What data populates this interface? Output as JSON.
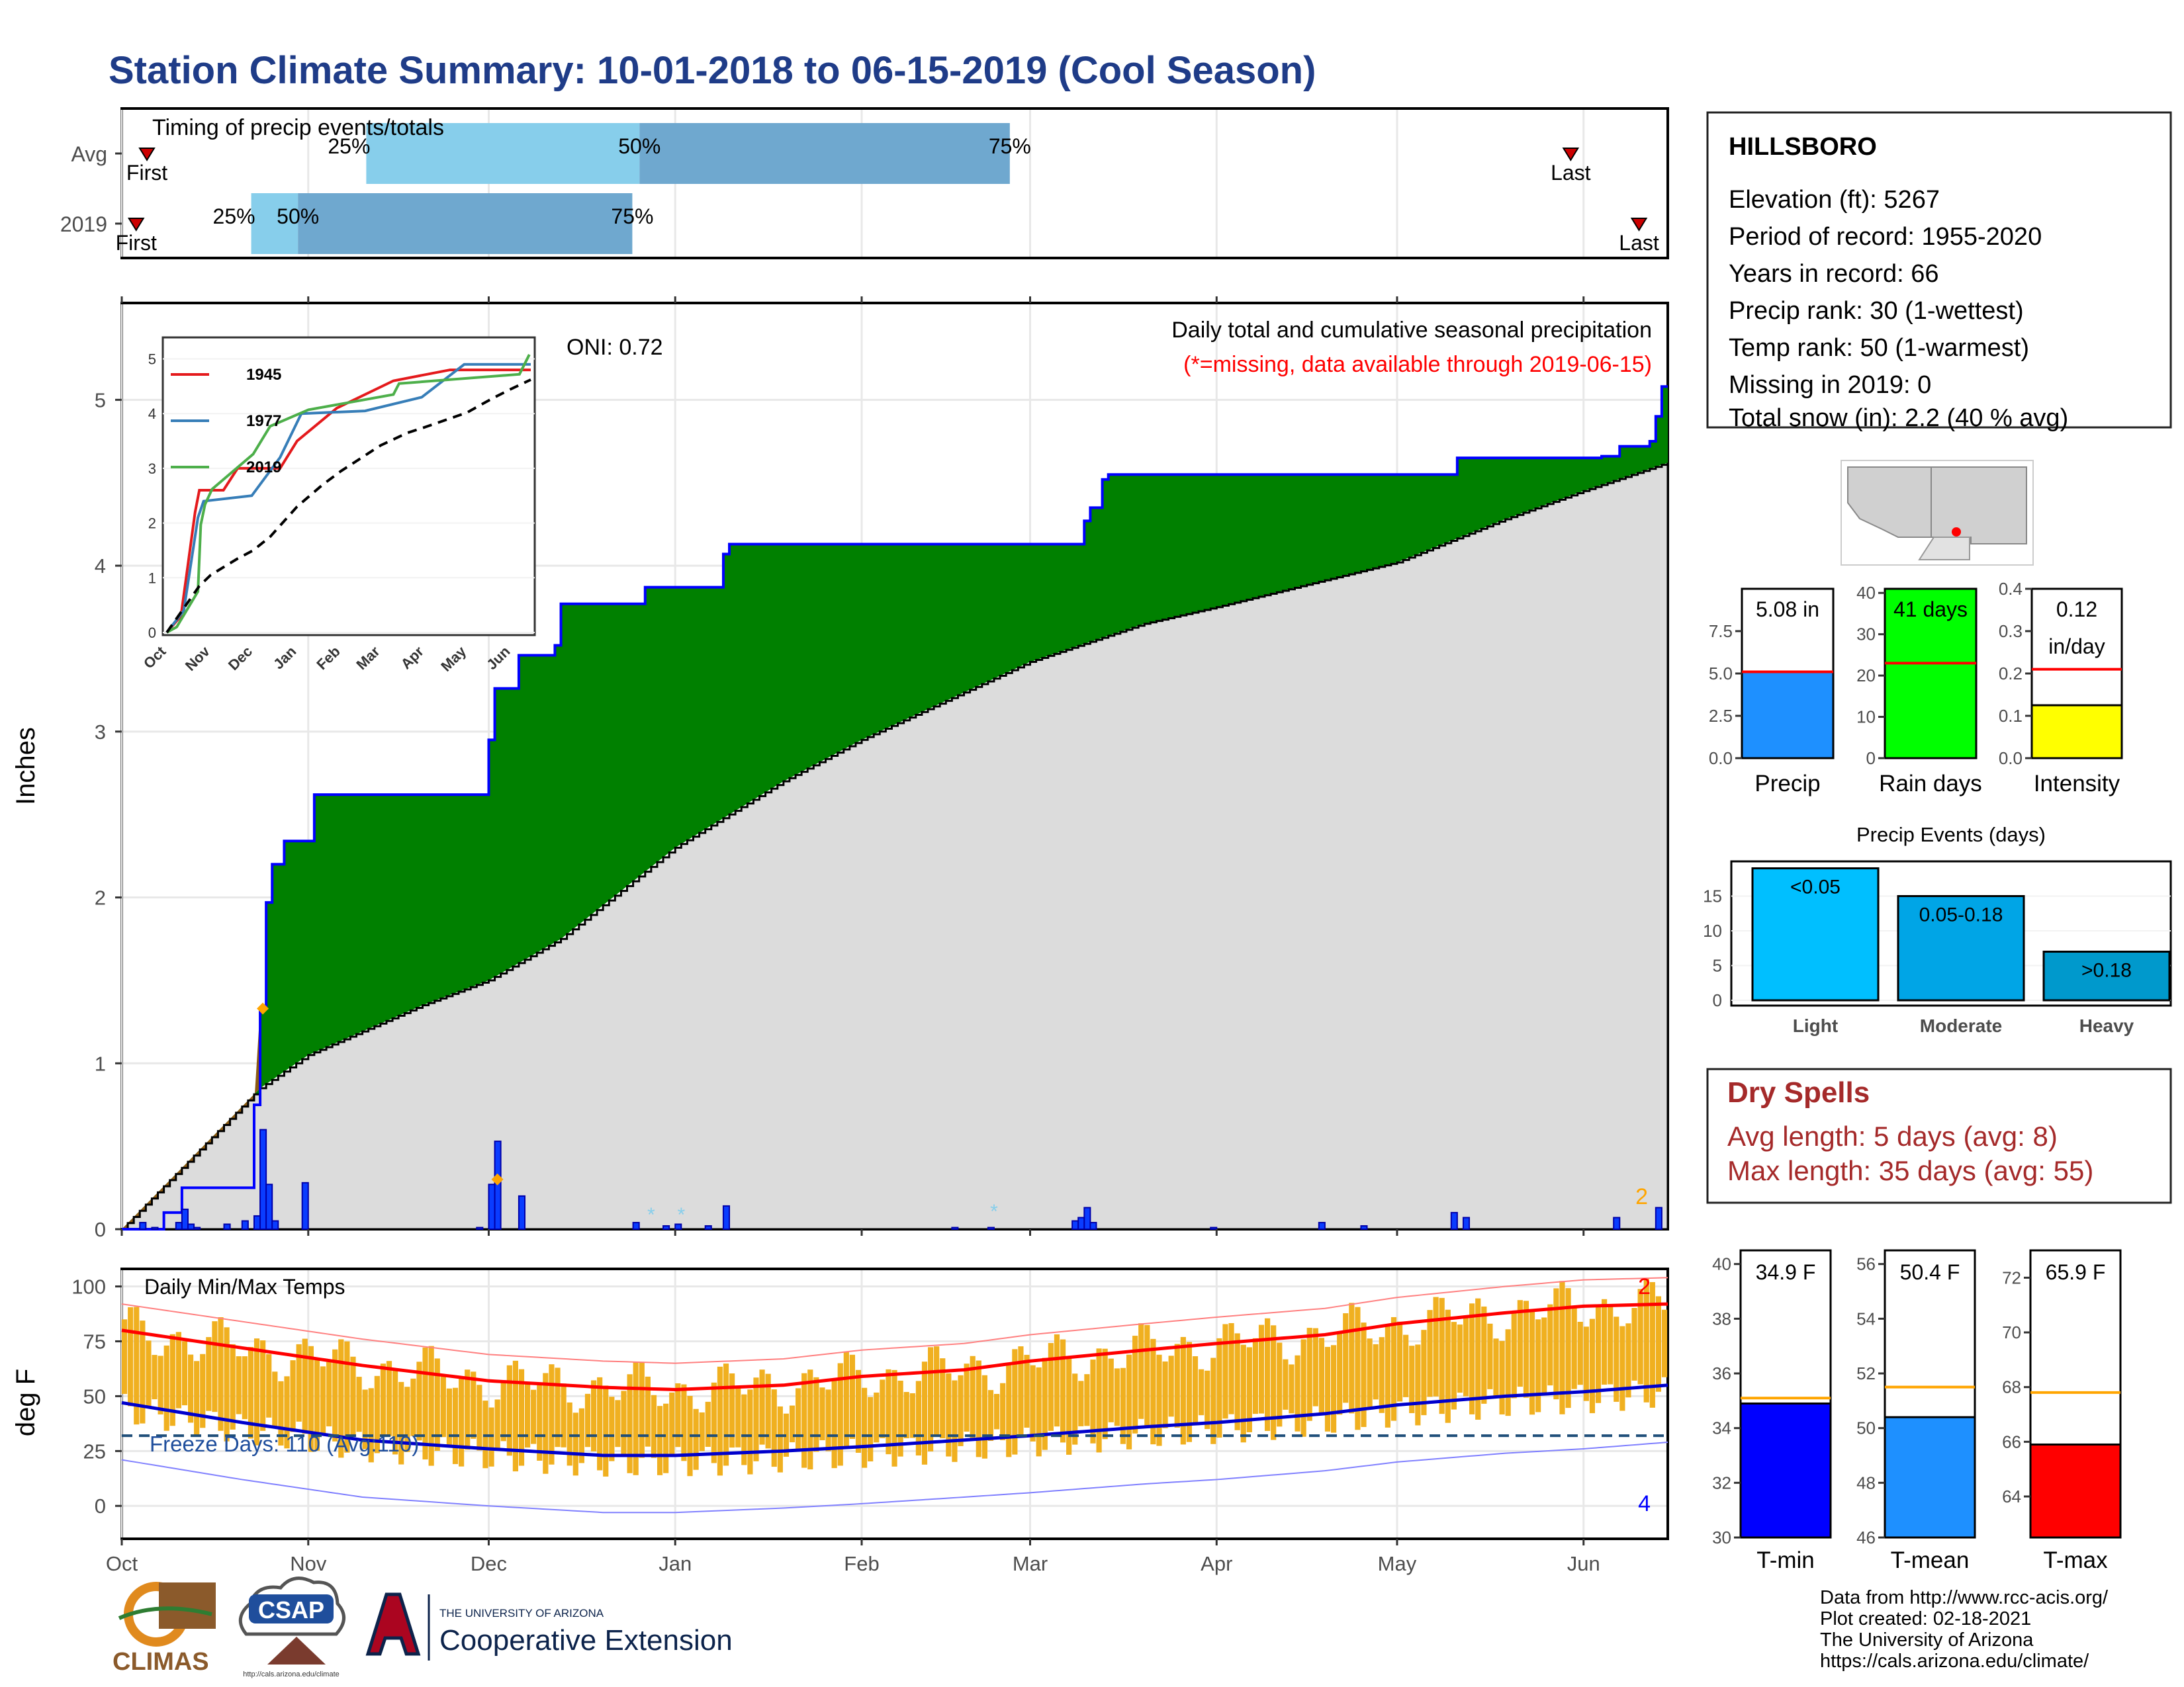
{
  "title": "Station Climate Summary: 10-01-2018 to 06-15-2019 (Cool Season)",
  "timing": {
    "caption": "Timing of precip events/totals",
    "rows": [
      {
        "label": "Avg",
        "first_day": 7,
        "p25_day": 68,
        "p50_day": 144,
        "p75_day": 247,
        "last_day": 403
      },
      {
        "label": "2019",
        "first_day": 4,
        "p25_day": 36,
        "p50_day": 49,
        "p75_day": 142,
        "last_day": 422
      }
    ],
    "labels": {
      "first": "First",
      "last": "Last",
      "p25": "25%",
      "p50": "50%",
      "p75": "75%"
    }
  },
  "months": [
    "Oct",
    "Nov",
    "Dec",
    "Jan",
    "Feb",
    "Mar",
    "Apr",
    "May",
    "Jun"
  ],
  "month_days": [
    0,
    31,
    61,
    92,
    123,
    151,
    182,
    212,
    243
  ],
  "total_days": 257,
  "precip": {
    "ylabel": "Inches",
    "yticks": [
      0,
      1,
      2,
      3,
      4,
      5
    ],
    "caption": "Daily total and cumulative seasonal precipitation",
    "missing_note": "(*=missing, data available through 2019-06-15)",
    "oni": "ONI: 0.72",
    "corner_count": "2"
  },
  "inset": {
    "yticks": [
      0,
      1,
      2,
      3,
      4,
      5
    ],
    "xticks": [
      "Oct",
      "Nov",
      "Dec",
      "Jan",
      "Feb",
      "Mar",
      "Apr",
      "May",
      "Jun"
    ],
    "legend": [
      "1945",
      "1977",
      "2019"
    ],
    "colors": [
      "#e41a1c",
      "#377eb8",
      "#4daf4a"
    ]
  },
  "temps": {
    "ylabel": "deg F",
    "caption": "Daily Min/Max Temps",
    "yticks": [
      0,
      25,
      50,
      75,
      100
    ],
    "freeze": "Freeze Days: 110 (Avg:110)",
    "top_count": "2",
    "bottom_count": "4"
  },
  "station": {
    "name": "HILLSBORO",
    "lines": [
      "Elevation (ft): 5267",
      "Period of record: 1955-2020",
      "Years in record: 66",
      "Precip rank: 30 (1-wettest)",
      "Temp rank: 50 (1-warmest)",
      "Missing in 2019: 0",
      "Total snow (in): 2.2 (40 % avg)"
    ]
  },
  "mini": [
    {
      "label": "Precip",
      "value_text": "5.08 in",
      "value": 5.08,
      "avg": 5.1,
      "yticks": [
        "0.0",
        "2.5",
        "5.0",
        "7.5"
      ],
      "ymax": 10,
      "color": "#1e90ff"
    },
    {
      "label": "Rain days",
      "value_text": "41 days",
      "value": 41,
      "avg": 23,
      "yticks": [
        "0",
        "10",
        "20",
        "30",
        "40"
      ],
      "ymax": 41,
      "color": "#00ff00"
    },
    {
      "label": "Intensity",
      "value_text": "0.12\nin/day",
      "value": 0.125,
      "avg": 0.21,
      "yticks": [
        "0.0",
        "0.1",
        "0.2",
        "0.3",
        "0.4"
      ],
      "ymax": 0.4,
      "color": "#ffff00"
    }
  ],
  "events": {
    "title": "Precip Events (days)",
    "bars": [
      {
        "label": "Light",
        "range": "<0.05",
        "value": 19,
        "color": "#00bfff"
      },
      {
        "label": "Moderate",
        "range": "0.05-0.18",
        "value": 15,
        "color": "#00a5e6"
      },
      {
        "label": "Heavy",
        "range": ">0.18",
        "value": 7,
        "color": "#0099cc"
      }
    ],
    "yticks": [
      0,
      5,
      10,
      15
    ]
  },
  "dry": {
    "title": "Dry Spells",
    "avg": "Avg length: 5 days (avg: 8)",
    "max": "Max length: 35 days (avg: 55)"
  },
  "tbars": [
    {
      "label": "T-min",
      "value_text": "34.9 F",
      "value": 34.9,
      "avg": 35.1,
      "ymin": 30,
      "ymax": 40.5,
      "yticks": [
        30,
        32,
        34,
        36,
        38,
        40
      ],
      "color": "#0000ff"
    },
    {
      "label": "T-mean",
      "value_text": "50.4 F",
      "value": 50.4,
      "avg": 51.5,
      "ymin": 46,
      "ymax": 56.5,
      "yticks": [
        46,
        48,
        50,
        52,
        54,
        56
      ],
      "color": "#1e90ff"
    },
    {
      "label": "T-max",
      "value_text": "65.9 F",
      "value": 65.9,
      "avg": 67.8,
      "ymin": 62.5,
      "ymax": 73,
      "yticks": [
        64,
        66,
        68,
        70,
        72
      ],
      "color": "#ff0000"
    }
  ],
  "footer": [
    "Data from http://www.rcc-acis.org/",
    "Plot created: 02-18-2021",
    "The University of Arizona",
    "https://cals.arizona.edu/climate/"
  ],
  "logos": {
    "climas": "CLIMAS",
    "csap": "CSAP",
    "csap_url": "http://cals.arizona.edu/climate",
    "ua_small": "THE UNIVERSITY OF ARIZONA",
    "ua_big": "Cooperative Extension"
  },
  "chart_data": [
    {
      "type": "area",
      "title": "Daily total and cumulative seasonal precipitation",
      "ylabel": "Inches",
      "ylim": [
        0,
        5.5
      ],
      "x_range": [
        "2018-10-01",
        "2019-06-15"
      ],
      "cumulative_2019": [
        [
          0,
          0
        ],
        [
          7,
          0.1
        ],
        [
          10,
          0.25
        ],
        [
          22,
          0.75
        ],
        [
          23,
          1.33
        ],
        [
          24,
          1.97
        ],
        [
          25,
          2.2
        ],
        [
          27,
          2.34
        ],
        [
          31,
          2.34
        ],
        [
          32,
          2.62
        ],
        [
          60,
          2.62
        ],
        [
          61,
          2.95
        ],
        [
          62,
          3.26
        ],
        [
          66,
          3.46
        ],
        [
          72,
          3.52
        ],
        [
          73,
          3.77
        ],
        [
          84,
          3.77
        ],
        [
          87,
          3.87
        ],
        [
          99,
          3.87
        ],
        [
          100,
          4.07
        ],
        [
          101,
          4.13
        ],
        [
          155,
          4.13
        ],
        [
          160,
          4.27
        ],
        [
          161,
          4.35
        ],
        [
          163,
          4.52
        ],
        [
          164,
          4.55
        ],
        [
          220,
          4.55
        ],
        [
          222,
          4.65
        ],
        [
          246,
          4.66
        ],
        [
          249,
          4.72
        ],
        [
          254,
          4.75
        ],
        [
          255,
          4.9
        ],
        [
          256,
          5.08
        ],
        [
          257,
          5.08
        ]
      ],
      "cumulative_avg": [
        [
          0,
          0
        ],
        [
          23,
          0.85
        ],
        [
          31,
          1.05
        ],
        [
          50,
          1.35
        ],
        [
          61,
          1.5
        ],
        [
          73,
          1.75
        ],
        [
          92,
          2.3
        ],
        [
          110,
          2.7
        ],
        [
          123,
          2.95
        ],
        [
          151,
          3.42
        ],
        [
          170,
          3.65
        ],
        [
          182,
          3.75
        ],
        [
          212,
          4.02
        ],
        [
          230,
          4.28
        ],
        [
          243,
          4.45
        ],
        [
          257,
          4.62
        ]
      ],
      "daily": [
        [
          3,
          0.04
        ],
        [
          5,
          0.01
        ],
        [
          9,
          0.04
        ],
        [
          10,
          0.12
        ],
        [
          11,
          0.03
        ],
        [
          12,
          0.01
        ],
        [
          17,
          0.03
        ],
        [
          20,
          0.05
        ],
        [
          22,
          0.08
        ],
        [
          23,
          0.6
        ],
        [
          24,
          0.27
        ],
        [
          25,
          0.05
        ],
        [
          30,
          0.28
        ],
        [
          59,
          0.01
        ],
        [
          61,
          0.27
        ],
        [
          62,
          0.53
        ],
        [
          66,
          0.2
        ],
        [
          85,
          0.04
        ],
        [
          90,
          0.02
        ],
        [
          92,
          0.03
        ],
        [
          97,
          0.02
        ],
        [
          100,
          0.14
        ],
        [
          138,
          0.01
        ],
        [
          144,
          0.01
        ],
        [
          158,
          0.05
        ],
        [
          159,
          0.07
        ],
        [
          160,
          0.13
        ],
        [
          161,
          0.04
        ],
        [
          181,
          0.01
        ],
        [
          199,
          0.04
        ],
        [
          206,
          0.02
        ],
        [
          221,
          0.1
        ],
        [
          223,
          0.07
        ],
        [
          248,
          0.07
        ],
        [
          255,
          0.13
        ]
      ]
    },
    {
      "type": "line",
      "title": "Daily Min/Max Temps",
      "ylabel": "deg F",
      "ylim": [
        -15,
        108
      ],
      "avg_max": [
        [
          0,
          80
        ],
        [
          20,
          72
        ],
        [
          40,
          64
        ],
        [
          61,
          57
        ],
        [
          80,
          54
        ],
        [
          92,
          53
        ],
        [
          110,
          55
        ],
        [
          123,
          59
        ],
        [
          140,
          62
        ],
        [
          151,
          66
        ],
        [
          170,
          71
        ],
        [
          182,
          74
        ],
        [
          200,
          78
        ],
        [
          212,
          83
        ],
        [
          230,
          88
        ],
        [
          243,
          91
        ],
        [
          257,
          92
        ]
      ],
      "avg_min": [
        [
          0,
          47
        ],
        [
          20,
          38
        ],
        [
          40,
          30
        ],
        [
          61,
          26
        ],
        [
          80,
          23
        ],
        [
          92,
          23
        ],
        [
          110,
          25
        ],
        [
          123,
          27
        ],
        [
          140,
          30
        ],
        [
          151,
          32
        ],
        [
          170,
          36
        ],
        [
          182,
          38
        ],
        [
          200,
          42
        ],
        [
          212,
          46
        ],
        [
          230,
          50
        ],
        [
          243,
          52
        ],
        [
          257,
          55
        ]
      ],
      "freeze_line": 32
    },
    {
      "type": "bar",
      "title": "Precip Events (days)",
      "categories": [
        "Light",
        "Moderate",
        "Heavy"
      ],
      "values": [
        19,
        15,
        7
      ]
    }
  ]
}
